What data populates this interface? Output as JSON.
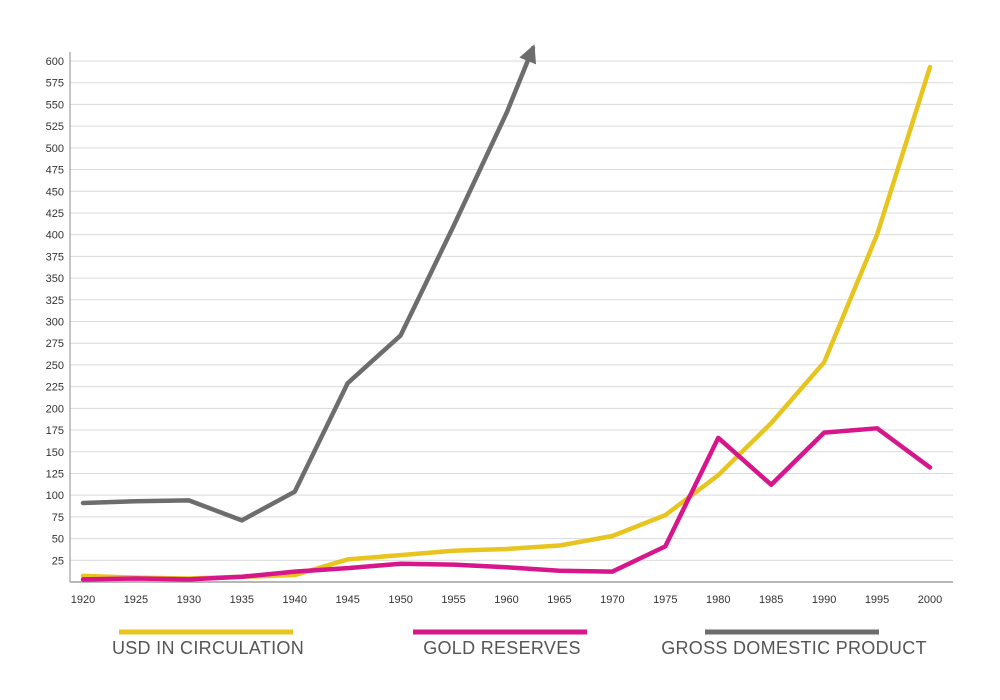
{
  "chart_data": {
    "type": "line",
    "x": [
      1920,
      1925,
      1930,
      1935,
      1940,
      1945,
      1950,
      1955,
      1960,
      1965,
      1970,
      1975,
      1980,
      1985,
      1990,
      1995,
      2000
    ],
    "x_ticks": [
      "1920",
      "1925",
      "1930",
      "1935",
      "1940",
      "1945",
      "1950",
      "1955",
      "1960",
      "1965",
      "1970",
      "1975",
      "1980",
      "1985",
      "1990",
      "1995",
      "2000"
    ],
    "y_ticks": [
      "25",
      "50",
      "75",
      "100",
      "125",
      "150",
      "175",
      "200",
      "225",
      "250",
      "275",
      "300",
      "325",
      "350",
      "375",
      "400",
      "425",
      "450",
      "475",
      "500",
      "525",
      "550",
      "575",
      "600"
    ],
    "xlim": [
      1920,
      2000
    ],
    "ylim": [
      0,
      600
    ],
    "grid": true,
    "legend_position": "bottom",
    "series": [
      {
        "name": "USD IN CIRCULATION",
        "color": "#E8C41E",
        "x": [
          1920,
          1925,
          1930,
          1935,
          1940,
          1945,
          1950,
          1955,
          1960,
          1965,
          1970,
          1975,
          1980,
          1985,
          1990,
          1995,
          2000
        ],
        "values": [
          7,
          5,
          4,
          6,
          8,
          26,
          31,
          36,
          38,
          42,
          53,
          77,
          123,
          183,
          253,
          400,
          593
        ]
      },
      {
        "name": "GOLD RESERVES",
        "color": "#D6168A",
        "x": [
          1920,
          1925,
          1930,
          1935,
          1940,
          1945,
          1950,
          1955,
          1960,
          1965,
          1970,
          1975,
          1980,
          1985,
          1990,
          1995,
          2000
        ],
        "values": [
          3,
          4,
          3,
          6,
          12,
          16,
          21,
          20,
          17,
          13,
          12,
          41,
          166,
          112,
          172,
          177,
          132
        ]
      },
      {
        "name": "GROSS DOMESTIC PRODUCT",
        "color": "#6D6D6D",
        "x": [
          1920,
          1925,
          1930,
          1935,
          1940,
          1945,
          1950,
          1955,
          1960,
          1962.5
        ],
        "values": [
          91,
          93,
          94,
          71,
          104,
          229,
          284,
          410,
          540,
          615
        ],
        "arrow_end": true
      }
    ]
  }
}
